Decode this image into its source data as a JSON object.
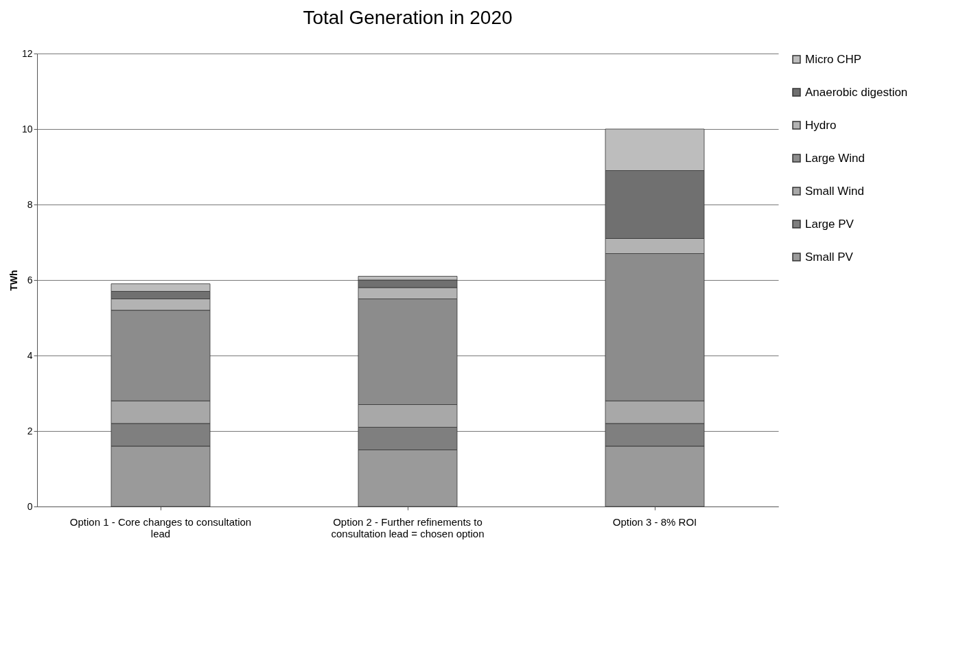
{
  "chart_data": {
    "type": "bar",
    "title": "Total Generation in 2020",
    "ylabel": "TWh",
    "stacked": true,
    "categories": [
      "Option 1 - Core changes to consultation lead",
      "Option 2 - Further refinements to consultation lead = chosen option",
      "Option 3 - 8% ROI"
    ],
    "series": [
      {
        "name": "Small PV",
        "color": "#9a9a9a",
        "values": [
          1.6,
          1.5,
          1.6
        ]
      },
      {
        "name": "Large PV",
        "color": "#7f7f7f",
        "values": [
          0.6,
          0.6,
          0.6
        ]
      },
      {
        "name": "Small Wind",
        "color": "#a8a8a8",
        "values": [
          0.6,
          0.6,
          0.6
        ]
      },
      {
        "name": "Large Wind",
        "color": "#8c8c8c",
        "values": [
          2.4,
          2.8,
          3.9
        ]
      },
      {
        "name": "Hydro",
        "color": "#b3b3b3",
        "values": [
          0.3,
          0.3,
          0.4
        ]
      },
      {
        "name": "Anaerobic digestion",
        "color": "#707070",
        "values": [
          0.2,
          0.2,
          1.8
        ]
      },
      {
        "name": "Micro CHP",
        "color": "#bdbdbd",
        "values": [
          0.2,
          0.1,
          1.1
        ]
      }
    ],
    "ylim": [
      0,
      12
    ],
    "yticks": [
      0,
      2,
      4,
      6,
      8,
      10,
      12
    ],
    "grid": "y",
    "legend": "right"
  }
}
